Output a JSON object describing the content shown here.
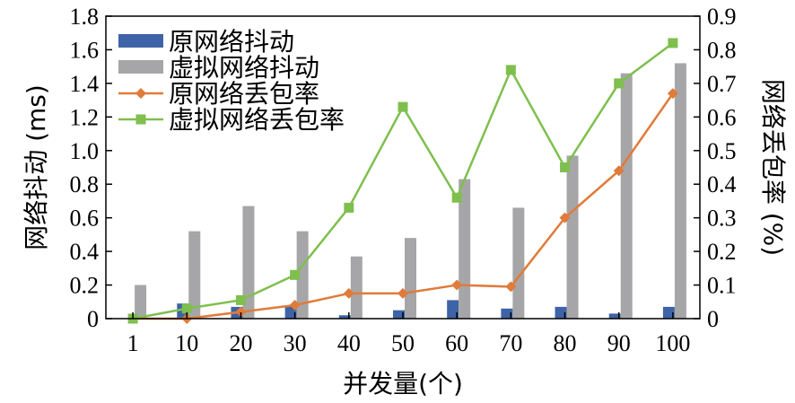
{
  "chart_data": {
    "type": "bar",
    "categories": [
      "1",
      "10",
      "20",
      "30",
      "40",
      "50",
      "60",
      "70",
      "80",
      "90",
      "100"
    ],
    "xlabel": "并发量(个)",
    "ylabel": "网络抖动 (ms)",
    "y2label": "网络丢包率 (%)",
    "ylim": [
      0,
      1.8
    ],
    "y2lim": [
      0,
      0.9
    ],
    "yticks": [
      "0",
      "0.2",
      "0.4",
      "0.6",
      "0.8",
      "1.0",
      "1.2",
      "1.4",
      "1.6",
      "1.8"
    ],
    "y2ticks": [
      "0",
      "0.1",
      "0.2",
      "0.3",
      "0.4",
      "0.5",
      "0.6",
      "0.7",
      "0.8",
      "0.9"
    ],
    "series": [
      {
        "name": "原网络抖动",
        "kind": "bar",
        "axis": "left",
        "color": "#3e63a6",
        "values": [
          0.0,
          0.09,
          0.07,
          0.08,
          0.02,
          0.05,
          0.11,
          0.06,
          0.07,
          0.03,
          0.07
        ]
      },
      {
        "name": "虚拟网络抖动",
        "kind": "bar",
        "axis": "left",
        "color": "#a6a6a8",
        "values": [
          0.2,
          0.52,
          0.67,
          0.52,
          0.37,
          0.48,
          0.83,
          0.66,
          0.97,
          1.46,
          1.52
        ]
      },
      {
        "name": "原网络丢包率",
        "kind": "line",
        "axis": "right",
        "marker": "diamond",
        "color": "#e07b3a",
        "values": [
          0.0,
          0.0,
          0.02,
          0.04,
          0.075,
          0.075,
          0.1,
          0.095,
          0.3,
          0.44,
          0.67
        ]
      },
      {
        "name": "虚拟网络丢包率",
        "kind": "line",
        "axis": "right",
        "marker": "square",
        "color": "#7fbf4e",
        "values": [
          0.0,
          0.03,
          0.055,
          0.13,
          0.33,
          0.63,
          0.36,
          0.74,
          0.45,
          0.7,
          0.82
        ]
      }
    ],
    "legend_position": "top-left",
    "grid": false
  }
}
